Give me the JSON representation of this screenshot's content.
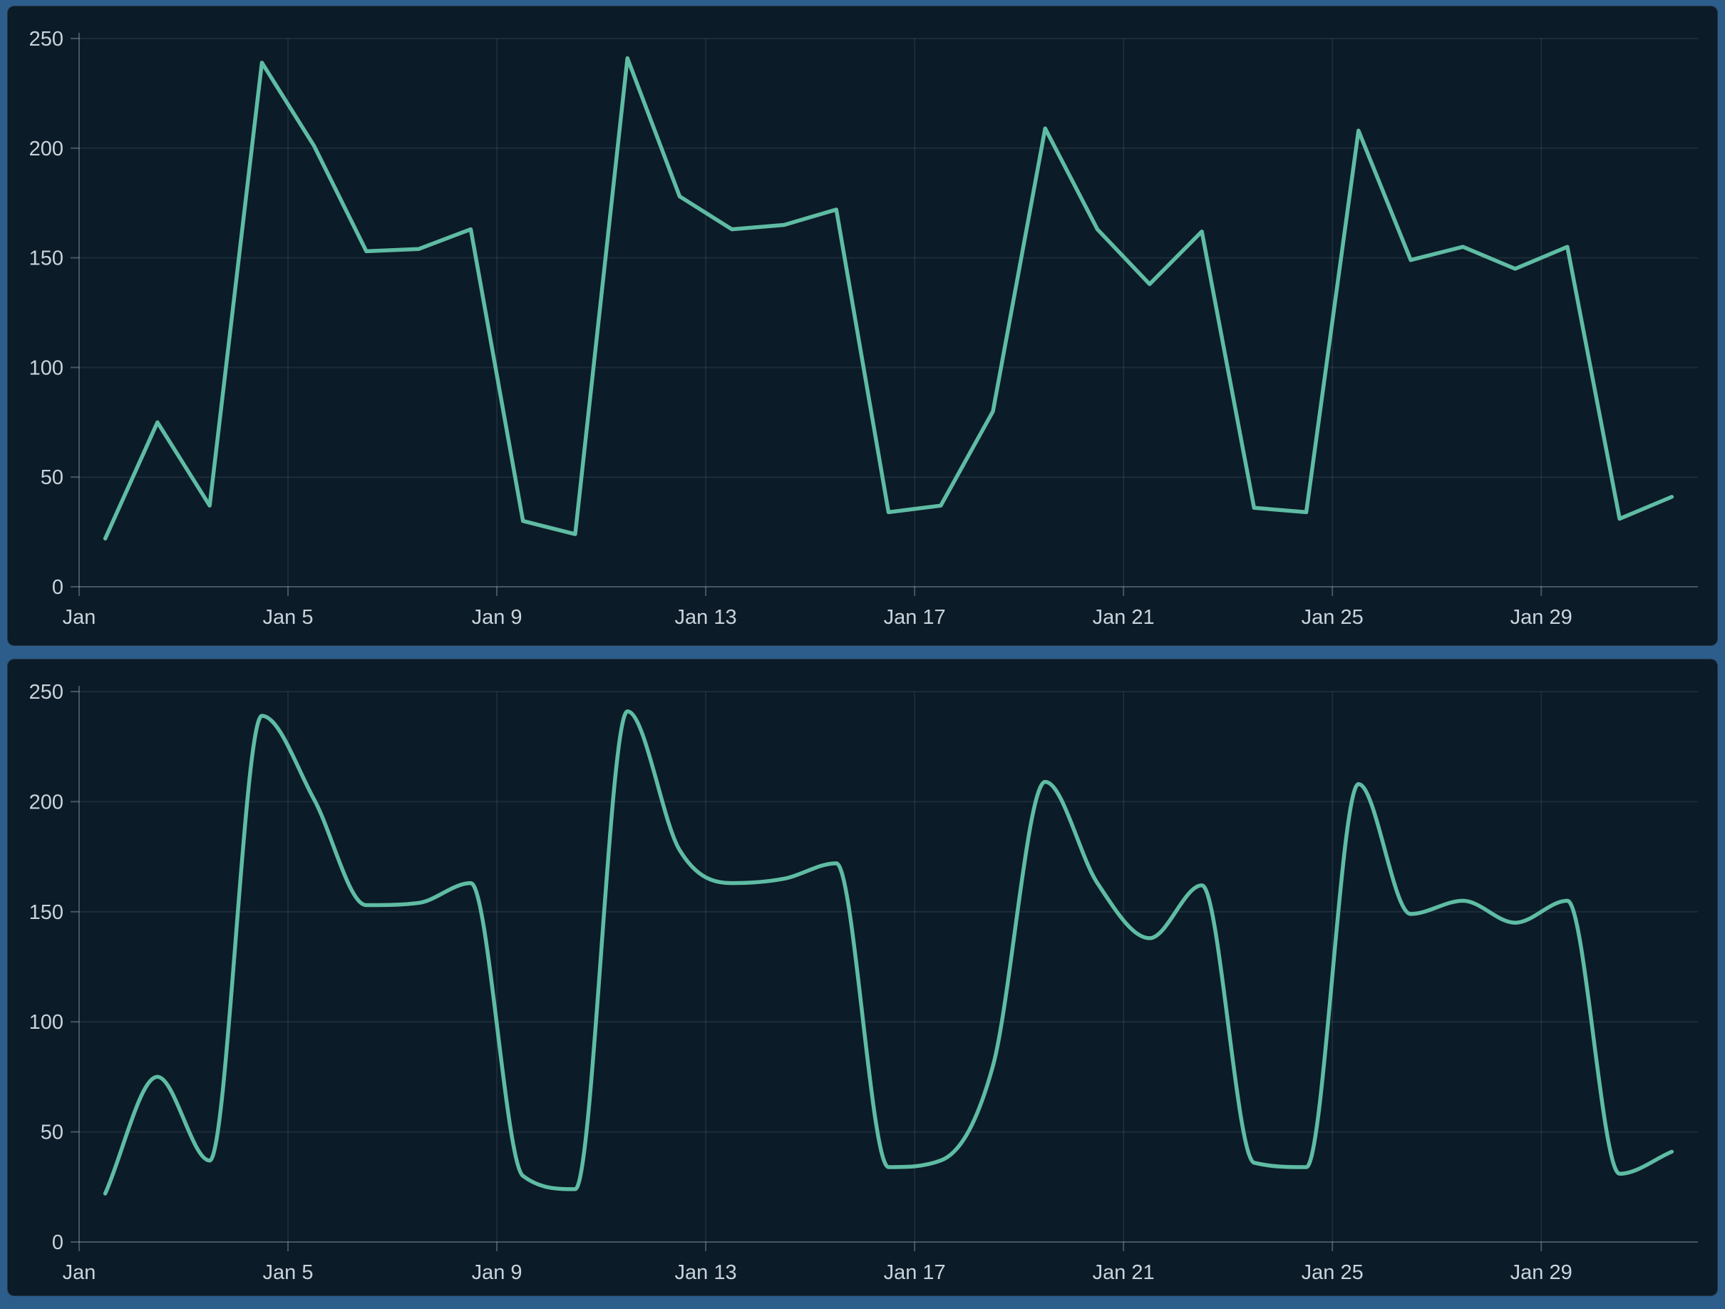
{
  "app": {
    "background_color": "#2c5d8b",
    "panel_background_color": "#0b1b27",
    "panel_border_color": "rgba(170,200,225,0.16)",
    "grid_color": "rgba(200,225,240,0.09)",
    "axis_color": "rgba(205,225,240,0.30)",
    "tick_label_color": "#c9d3dc",
    "line_color": "#5fbca4"
  },
  "chart_data": [
    {
      "type": "line",
      "interpolation": "linear",
      "title": "",
      "xlabel": "",
      "ylabel": "",
      "categories": [
        "Jan 1",
        "Jan 2",
        "Jan 3",
        "Jan 4",
        "Jan 5",
        "Jan 6",
        "Jan 7",
        "Jan 8",
        "Jan 9",
        "Jan 10",
        "Jan 11",
        "Jan 12",
        "Jan 13",
        "Jan 14",
        "Jan 15",
        "Jan 16",
        "Jan 17",
        "Jan 18",
        "Jan 19",
        "Jan 20",
        "Jan 21",
        "Jan 22",
        "Jan 23",
        "Jan 24",
        "Jan 25",
        "Jan 26",
        "Jan 27",
        "Jan 28",
        "Jan 29",
        "Jan 30",
        "Jan 31"
      ],
      "values": [
        22,
        75,
        37,
        239,
        201,
        153,
        154,
        163,
        30,
        24,
        241,
        178,
        163,
        165,
        172,
        34,
        37,
        80,
        209,
        163,
        138,
        162,
        36,
        34,
        208,
        149,
        155,
        145,
        155,
        31,
        41
      ],
      "x_ticks": [
        {
          "day": 1,
          "label": "Jan"
        },
        {
          "day": 5,
          "label": "Jan 5"
        },
        {
          "day": 9,
          "label": "Jan 9"
        },
        {
          "day": 13,
          "label": "Jan 13"
        },
        {
          "day": 17,
          "label": "Jan 17"
        },
        {
          "day": 21,
          "label": "Jan 21"
        },
        {
          "day": 25,
          "label": "Jan 25"
        },
        {
          "day": 29,
          "label": "Jan 29"
        }
      ],
      "yticks": [
        0,
        50,
        100,
        150,
        200,
        250
      ],
      "ylim": [
        0,
        250
      ],
      "grid": true,
      "legend": false,
      "line_color": "#5fbca4"
    },
    {
      "type": "line",
      "interpolation": "spline",
      "title": "",
      "xlabel": "",
      "ylabel": "",
      "categories": [
        "Jan 1",
        "Jan 2",
        "Jan 3",
        "Jan 4",
        "Jan 5",
        "Jan 6",
        "Jan 7",
        "Jan 8",
        "Jan 9",
        "Jan 10",
        "Jan 11",
        "Jan 12",
        "Jan 13",
        "Jan 14",
        "Jan 15",
        "Jan 16",
        "Jan 17",
        "Jan 18",
        "Jan 19",
        "Jan 20",
        "Jan 21",
        "Jan 22",
        "Jan 23",
        "Jan 24",
        "Jan 25",
        "Jan 26",
        "Jan 27",
        "Jan 28",
        "Jan 29",
        "Jan 30",
        "Jan 31"
      ],
      "values": [
        22,
        75,
        37,
        239,
        201,
        153,
        154,
        163,
        30,
        24,
        241,
        178,
        163,
        165,
        172,
        34,
        37,
        80,
        209,
        163,
        138,
        162,
        36,
        34,
        208,
        149,
        155,
        145,
        155,
        31,
        41
      ],
      "x_ticks": [
        {
          "day": 1,
          "label": "Jan"
        },
        {
          "day": 5,
          "label": "Jan 5"
        },
        {
          "day": 9,
          "label": "Jan 9"
        },
        {
          "day": 13,
          "label": "Jan 13"
        },
        {
          "day": 17,
          "label": "Jan 17"
        },
        {
          "day": 21,
          "label": "Jan 21"
        },
        {
          "day": 25,
          "label": "Jan 25"
        },
        {
          "day": 29,
          "label": "Jan 29"
        }
      ],
      "yticks": [
        0,
        50,
        100,
        150,
        200,
        250
      ],
      "ylim": [
        0,
        250
      ],
      "grid": true,
      "legend": false,
      "line_color": "#5fbca4"
    }
  ]
}
